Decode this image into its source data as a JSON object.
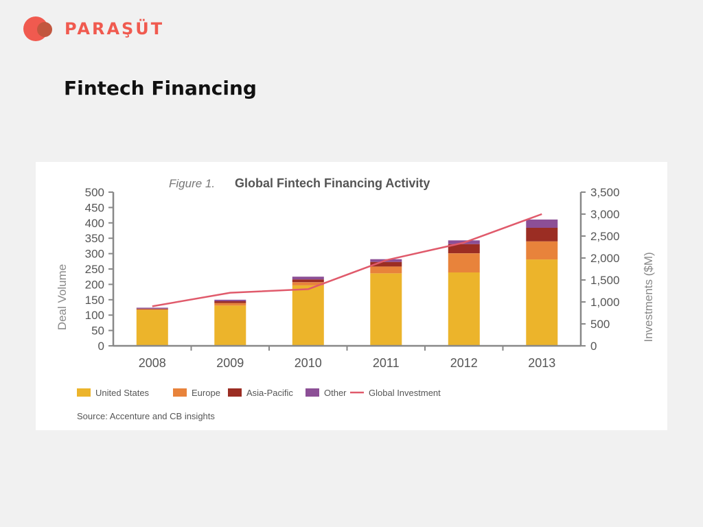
{
  "header": {
    "brand": "PARAŞÜT",
    "title": "Fintech Financing"
  },
  "figure": {
    "label": "Figure 1.",
    "caption": "Global Fintech Financing Activity",
    "source": "Source: Accenture and CB insights"
  },
  "colors": {
    "brand": "#f05a4f",
    "united_states": "#ecb42b",
    "europe": "#e8833b",
    "asia_pacific": "#9b2d23",
    "other": "#8c4f96",
    "global_investment": "#e05a6b"
  },
  "chart_data": {
    "type": "bar",
    "stacked": true,
    "categories": [
      "2008",
      "2009",
      "2010",
      "2011",
      "2012",
      "2013"
    ],
    "series": [
      {
        "name": "United States",
        "values": [
          117,
          131,
          197,
          236,
          239,
          281
        ]
      },
      {
        "name": "Europe",
        "values": [
          2,
          8,
          10,
          22,
          62,
          59
        ]
      },
      {
        "name": "Asia-Pacific",
        "values": [
          2,
          6,
          9,
          15,
          30,
          44
        ]
      },
      {
        "name": "Other",
        "values": [
          3,
          5,
          9,
          9,
          12,
          27
        ]
      }
    ],
    "line_series": {
      "name": "Global Investment",
      "axis": "right",
      "values": [
        900,
        1210,
        1290,
        1950,
        2350,
        3000
      ]
    },
    "ylabel": "Deal Volume",
    "ylim": [
      0,
      500
    ],
    "y_ticks": [
      "0",
      "50",
      "100",
      "150",
      "200",
      "250",
      "300",
      "350",
      "400",
      "450",
      "500"
    ],
    "y2label": "Investments ($M)",
    "y2lim": [
      0,
      3500
    ],
    "y2_ticks": [
      "0",
      "500",
      "1,000",
      "1,500",
      "2,000",
      "2,500",
      "3,000",
      "3,500"
    ],
    "legend_position": "bottom",
    "grid": false
  }
}
